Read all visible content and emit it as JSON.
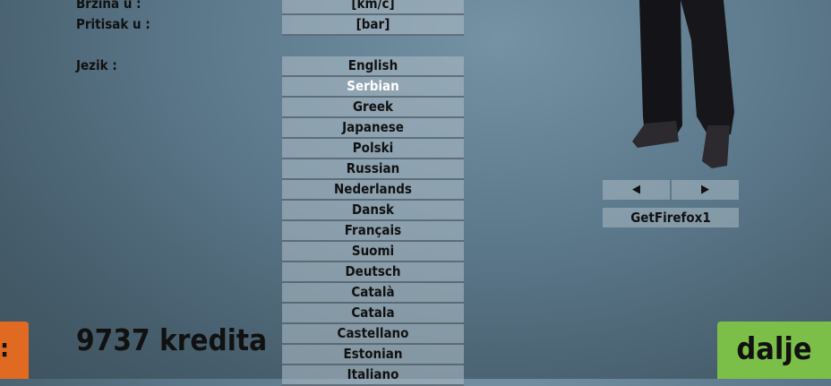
{
  "settings": {
    "speed_label": "Brzina u :",
    "speed_value": "[km/c]",
    "pressure_label": "Pritisak u :",
    "pressure_value": "[bar]",
    "language_label": "Jezik :",
    "languages": [
      "English",
      "Serbian",
      "Greek",
      "Japanese",
      "Polski",
      "Russian",
      "Nederlands",
      "Dansk",
      "Français",
      "Suomi",
      "Deutsch",
      "Català",
      "Catala",
      "Castellano",
      "Estonian",
      "Italiano"
    ],
    "selected_language": "Serbian"
  },
  "character": {
    "prev": "◀",
    "next": "▶",
    "name": "GetFirefox1"
  },
  "footer": {
    "credits": "9737 kredita",
    "back_label": ":",
    "next_label": "dalje",
    "back_color": "#e06a22",
    "next_color": "#7cbf48"
  }
}
